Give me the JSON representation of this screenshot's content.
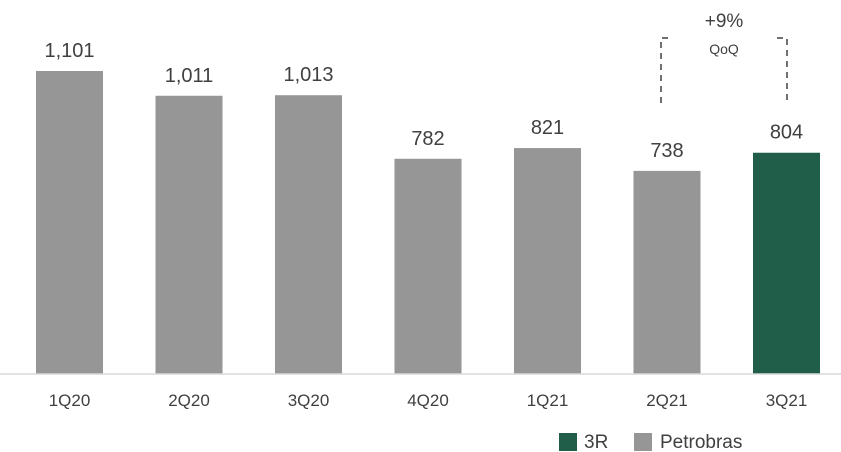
{
  "chart_data": {
    "type": "bar",
    "categories": [
      "1Q20",
      "2Q20",
      "3Q20",
      "4Q20",
      "1Q21",
      "2Q21",
      "3Q21"
    ],
    "values": [
      1101,
      1011,
      1013,
      782,
      821,
      738,
      804
    ],
    "value_labels": [
      "1,101",
      "1,011",
      "1,013",
      "782",
      "821",
      "738",
      "804"
    ],
    "series_by_bar": [
      "Petrobras",
      "Petrobras",
      "Petrobras",
      "Petrobras",
      "Petrobras",
      "Petrobras",
      "3R"
    ],
    "ylim": [
      0,
      1101
    ],
    "grid": false,
    "colors": {
      "3R": "#215e4a",
      "Petrobras": "#969696",
      "axis": "#d9d9d9",
      "text": "#404040"
    },
    "legend": {
      "position": "bottom-right",
      "entries": [
        "3R",
        "Petrobras"
      ]
    },
    "annotation": {
      "value": "+9%",
      "sub": "QoQ",
      "between": [
        "2Q21",
        "3Q21"
      ]
    }
  }
}
